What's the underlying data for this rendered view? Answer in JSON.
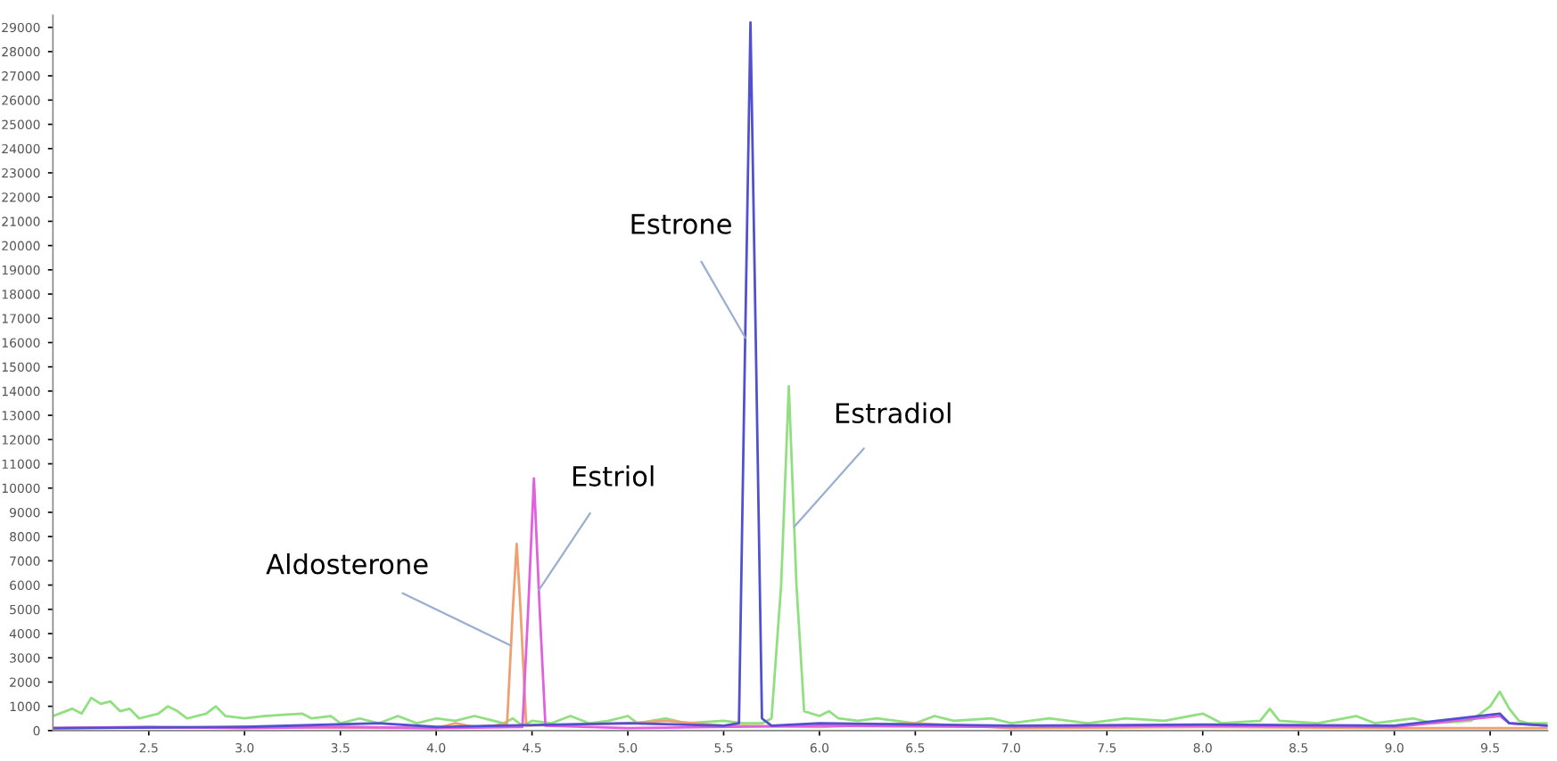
{
  "chart_data": {
    "type": "line",
    "xlim": [
      2.0,
      9.8
    ],
    "ylim": [
      0,
      29500
    ],
    "xticks": [
      2.5,
      {
        "value": 3,
        "label": "3.0"
      },
      3.5,
      {
        "value": 4,
        "label": "4.0"
      },
      4.5,
      {
        "value": 5,
        "label": "5.0"
      },
      5.5,
      {
        "value": 6,
        "label": "6.0"
      },
      6.5,
      {
        "value": 7,
        "label": "7.0"
      },
      7.5,
      {
        "value": 8,
        "label": "8.0"
      },
      8.5,
      {
        "value": 9,
        "label": "9.0"
      },
      9.5
    ],
    "yticks": [
      0,
      1000,
      2000,
      3000,
      4000,
      5000,
      6000,
      7000,
      8000,
      9000,
      10000,
      11000,
      12000,
      13000,
      14000,
      15000,
      16000,
      17000,
      18000,
      19000,
      20000,
      21000,
      22000,
      23000,
      24000,
      25000,
      26000,
      27000,
      28000,
      29000
    ],
    "grid": false,
    "legend": false,
    "marker": "none",
    "line_style": "solid",
    "series": [
      {
        "color": "#90e080",
        "x": [
          2.0,
          2.1,
          2.15,
          2.2,
          2.25,
          2.3,
          2.35,
          2.4,
          2.45,
          2.55,
          2.6,
          2.65,
          2.7,
          2.8,
          2.85,
          2.9,
          3.0,
          3.1,
          3.2,
          3.3,
          3.35,
          3.45,
          3.5,
          3.6,
          3.7,
          3.8,
          3.9,
          4.0,
          4.1,
          4.2,
          4.3,
          4.35,
          4.4,
          4.45,
          4.5,
          4.6,
          4.7,
          4.8,
          4.9,
          5.0,
          5.05,
          5.2,
          5.3,
          5.5,
          5.6,
          5.7,
          5.75,
          5.8,
          5.84,
          5.88,
          5.92,
          6.0,
          6.05,
          6.1,
          6.2,
          6.3,
          6.5,
          6.6,
          6.7,
          6.9,
          7.0,
          7.2,
          7.4,
          7.6,
          7.8,
          8.0,
          8.1,
          8.3,
          8.35,
          8.4,
          8.6,
          8.8,
          8.9,
          9.1,
          9.2,
          9.4,
          9.5,
          9.55,
          9.6,
          9.65,
          9.7,
          9.8
        ],
        "values": [
          600,
          900,
          700,
          1350,
          1100,
          1200,
          800,
          900,
          500,
          700,
          1000,
          800,
          500,
          700,
          1000,
          600,
          500,
          600,
          650,
          700,
          500,
          600,
          300,
          500,
          300,
          600,
          300,
          500,
          400,
          600,
          400,
          300,
          500,
          200,
          400,
          300,
          600,
          300,
          400,
          600,
          300,
          500,
          300,
          400,
          300,
          300,
          500,
          6000,
          14200,
          6000,
          800,
          600,
          800,
          500,
          400,
          500,
          300,
          600,
          400,
          500,
          300,
          500,
          300,
          500,
          400,
          700,
          300,
          400,
          900,
          400,
          300,
          600,
          300,
          500,
          300,
          400,
          1000,
          1600,
          900,
          400,
          300,
          300
        ]
      },
      {
        "color": "#f0a070",
        "x": [
          2.0,
          3.0,
          4.0,
          4.1,
          4.2,
          4.3,
          4.37,
          4.4,
          4.42,
          4.44,
          4.47,
          5.0,
          5.2,
          5.5,
          6.0,
          6.5,
          7.0,
          8.0,
          9.0,
          9.8
        ],
        "values": [
          100,
          150,
          100,
          300,
          150,
          200,
          300,
          5000,
          7700,
          5000,
          200,
          300,
          400,
          200,
          150,
          300,
          100,
          150,
          100,
          100
        ]
      },
      {
        "color": "#e060e0",
        "x": [
          2.0,
          2.5,
          3.0,
          3.5,
          4.0,
          4.45,
          4.48,
          4.51,
          4.54,
          4.57,
          5.0,
          6.0,
          7.0,
          8.0,
          9.0,
          9.55,
          9.6,
          9.8
        ],
        "values": [
          100,
          150,
          100,
          150,
          100,
          150,
          5000,
          10400,
          5000,
          200,
          100,
          200,
          150,
          200,
          150,
          600,
          300,
          200
        ]
      },
      {
        "color": "#5050d0",
        "x": [
          2.0,
          3.0,
          3.7,
          4.0,
          5.0,
          5.5,
          5.58,
          5.61,
          5.64,
          5.67,
          5.7,
          5.75,
          6.0,
          7.0,
          8.0,
          9.0,
          9.55,
          9.6,
          9.8
        ],
        "values": [
          100,
          150,
          300,
          150,
          300,
          200,
          300,
          15000,
          29200,
          15000,
          500,
          200,
          300,
          200,
          250,
          200,
          700,
          300,
          200
        ]
      }
    ],
    "annotations": [
      {
        "text": "Aldosterone",
        "x": 4.39,
        "y": 3500
      },
      {
        "text": "Estriol",
        "x": 4.536,
        "y": 5800
      },
      {
        "text": "Estrone",
        "x": 5.613,
        "y": 16200
      },
      {
        "text": "Estradiol",
        "x": 5.868,
        "y": 8400
      }
    ]
  }
}
